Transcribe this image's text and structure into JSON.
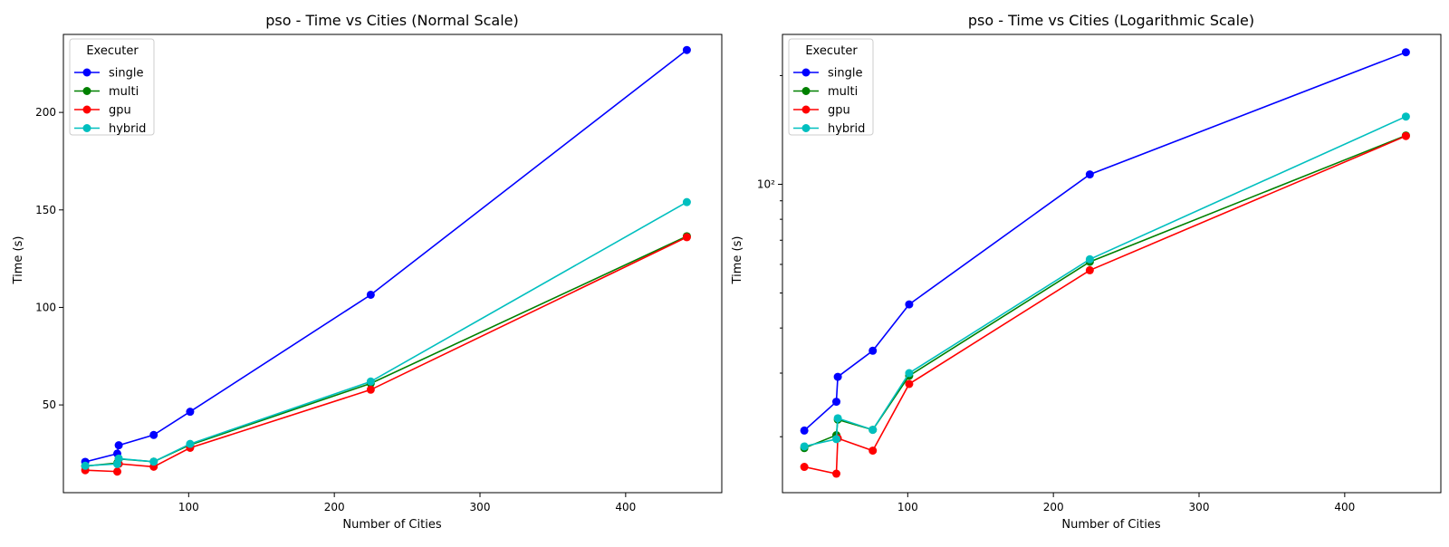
{
  "chart_data": [
    {
      "type": "line",
      "title": "pso - Time vs Cities (Normal Scale)",
      "xlabel": "Number of Cities",
      "ylabel": "Time (s)",
      "yscale": "linear",
      "xlim": [
        14,
        466
      ],
      "ylim": [
        5,
        240
      ],
      "xticks": [
        100,
        200,
        300,
        400
      ],
      "yticks": [
        50,
        100,
        150,
        200
      ],
      "grid": false,
      "legend": {
        "title": "Executer",
        "placement": "top-left"
      },
      "series": [
        {
          "name": "single",
          "color": "#0000ff",
          "x": [
            29,
            51,
            52,
            76,
            101,
            225,
            442
          ],
          "y": [
            20.8,
            25.0,
            29.3,
            34.6,
            46.5,
            106.5,
            232.0
          ]
        },
        {
          "name": "multi",
          "color": "#008000",
          "x": [
            29,
            51,
            52,
            76,
            101,
            225,
            442
          ],
          "y": [
            18.6,
            20.2,
            22.3,
            20.9,
            29.5,
            61.0,
            136.5
          ]
        },
        {
          "name": "gpu",
          "color": "#ff0000",
          "x": [
            29,
            51,
            52,
            76,
            101,
            225,
            442
          ],
          "y": [
            16.5,
            15.8,
            19.8,
            18.3,
            28.0,
            57.8,
            136.0
          ]
        },
        {
          "name": "hybrid",
          "color": "#00bfbf",
          "x": [
            29,
            51,
            52,
            76,
            101,
            225,
            442
          ],
          "y": [
            18.8,
            19.7,
            22.5,
            20.9,
            30.0,
            62.0,
            154.0
          ]
        }
      ]
    },
    {
      "type": "line",
      "title": "pso - Time vs Cities (Logarithmic Scale)",
      "xlabel": "Number of Cities",
      "ylabel": "Time (s)",
      "yscale": "log",
      "xlim": [
        14,
        466
      ],
      "ylim": [
        14.0,
        260
      ],
      "xticks": [
        100,
        200,
        300,
        400
      ],
      "yticks": [
        100
      ],
      "yticklabels": [
        "10²"
      ],
      "yminorticks": [
        20,
        30,
        40,
        50,
        60,
        70,
        80,
        90,
        200
      ],
      "grid": false,
      "legend": {
        "title": "Executer",
        "placement": "top-left"
      },
      "series": [
        {
          "name": "single",
          "color": "#0000ff",
          "x": [
            29,
            51,
            52,
            76,
            101,
            225,
            442
          ],
          "y": [
            20.8,
            25.0,
            29.3,
            34.6,
            46.5,
            106.5,
            232.0
          ]
        },
        {
          "name": "multi",
          "color": "#008000",
          "x": [
            29,
            51,
            52,
            76,
            101,
            225,
            442
          ],
          "y": [
            18.6,
            20.2,
            22.3,
            20.9,
            29.5,
            61.0,
            136.5
          ]
        },
        {
          "name": "gpu",
          "color": "#ff0000",
          "x": [
            29,
            51,
            52,
            76,
            101,
            225,
            442
          ],
          "y": [
            16.5,
            15.8,
            19.8,
            18.3,
            28.0,
            57.8,
            136.0
          ]
        },
        {
          "name": "hybrid",
          "color": "#00bfbf",
          "x": [
            29,
            51,
            52,
            76,
            101,
            225,
            442
          ],
          "y": [
            18.8,
            19.7,
            22.5,
            20.9,
            30.0,
            62.0,
            154.0
          ]
        }
      ]
    }
  ]
}
